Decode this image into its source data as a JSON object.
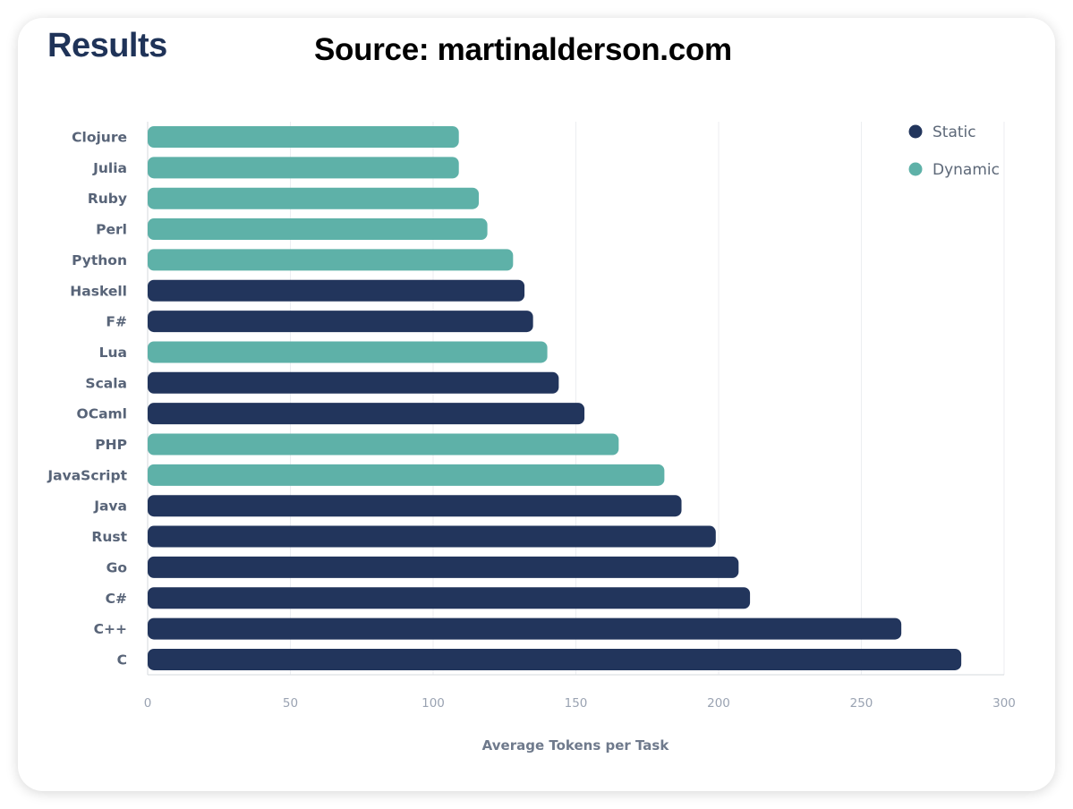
{
  "header": {
    "title": "Results",
    "source": "Source: martinalderson.com"
  },
  "colors": {
    "static": "#22355c",
    "dynamic": "#5eb1a8",
    "grid": "#eceef1",
    "axis": "#d6d9de"
  },
  "chart_data": {
    "type": "bar",
    "orientation": "horizontal",
    "title": "",
    "xlabel": "Average Tokens per Task",
    "ylabel": "",
    "xlim": [
      0,
      300
    ],
    "xticks": [
      0,
      50,
      100,
      150,
      200,
      250,
      300
    ],
    "grid": true,
    "legend_position": "top-right",
    "legend": [
      {
        "key": "static",
        "label": "Static"
      },
      {
        "key": "dynamic",
        "label": "Dynamic"
      }
    ],
    "categories": [
      "Clojure",
      "Julia",
      "Ruby",
      "Perl",
      "Python",
      "Haskell",
      "F#",
      "Lua",
      "Scala",
      "OCaml",
      "PHP",
      "JavaScript",
      "Java",
      "Rust",
      "Go",
      "C#",
      "C++",
      "C"
    ],
    "values": [
      109,
      109,
      116,
      119,
      128,
      132,
      135,
      140,
      144,
      153,
      165,
      181,
      187,
      199,
      207,
      211,
      264,
      285
    ],
    "groups": [
      "dynamic",
      "dynamic",
      "dynamic",
      "dynamic",
      "dynamic",
      "static",
      "static",
      "dynamic",
      "static",
      "static",
      "dynamic",
      "dynamic",
      "static",
      "static",
      "static",
      "static",
      "static",
      "static"
    ]
  }
}
